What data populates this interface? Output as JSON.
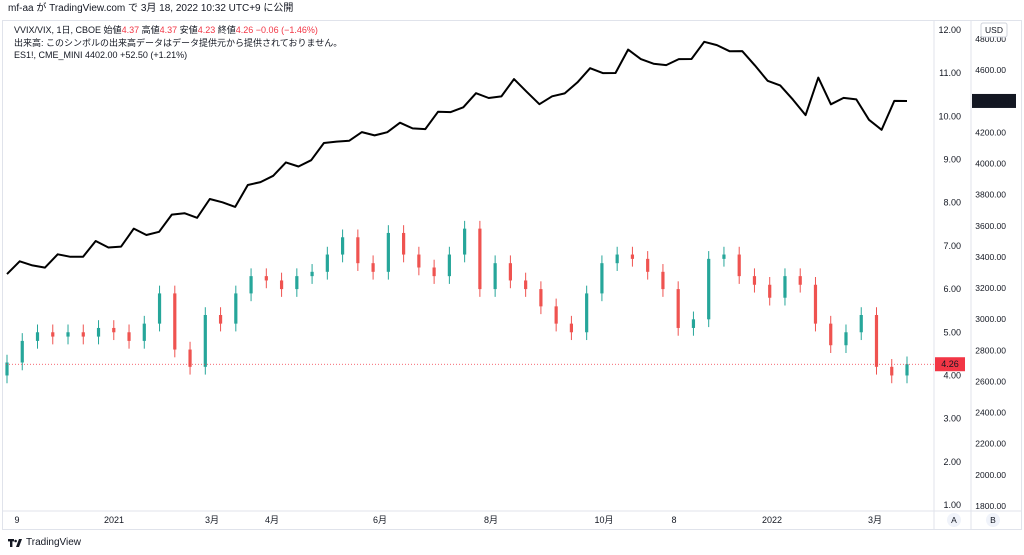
{
  "header": {
    "text": "mf-aa が TradingView.com で 3月 18, 2022 10:32 UTC+9 に公開"
  },
  "legend": {
    "vvix_symbol": "VVIX/VIX, 1日, CBOE",
    "open_label": "始値",
    "open": "4.37",
    "high_label": "高値",
    "high": "4.37",
    "low_label": "安値",
    "low": "4.23",
    "close_label": "終値",
    "close": "4.26",
    "change": "−0.06 (−1.46%)",
    "volume_note": "出来高: このシンボルの出来高データはデータ提供元から提供されておりません。",
    "es_symbol": "ES1!, CME_MINI",
    "es_value": "4402.00",
    "es_change": "+52.50 (+1.21%)"
  },
  "currency": "USD",
  "scale_buttons": {
    "a": "A",
    "b": "B"
  },
  "footer": {
    "brand": "TradingView"
  },
  "colors": {
    "up": "#26a69a",
    "down": "#ef5350",
    "line": "#000000",
    "last_price": "#f23645"
  },
  "chart_data": {
    "type": "candlestick+line",
    "x_labels": [
      "9",
      "2021",
      "3月",
      "4月",
      "6月",
      "8月",
      "10月",
      "8",
      "2022",
      "3月"
    ],
    "right_axis_ratio": {
      "ticks": [
        "12.00",
        "11.00",
        "10.00",
        "9.00",
        "8.00",
        "7.00",
        "6.00",
        "5.00",
        "4.00",
        "3.00",
        "2.00",
        "1.00"
      ],
      "range": [
        1,
        12
      ]
    },
    "right_axis_price": {
      "ticks": [
        "4800.00",
        "4600.00",
        "4400.00",
        "4200.00",
        "4000.00",
        "3800.00",
        "3600.00",
        "3400.00",
        "3200.00",
        "3000.00",
        "2800.00",
        "2600.00",
        "2400.00",
        "2200.00",
        "2000.00",
        "1800.00"
      ],
      "range": [
        1800,
        4800
      ]
    },
    "series": [
      {
        "name": "ES1!, CME_MINI",
        "axis": "price",
        "values": [
          3290,
          3340,
          3365,
          3370,
          3385,
          3420,
          3440,
          3470,
          3480,
          3505,
          3550,
          3560,
          3600,
          3640,
          3700,
          3690,
          3740,
          3770,
          3760,
          3830,
          3900,
          3960,
          3975,
          4000,
          4060,
          4100,
          4160,
          4185,
          4170,
          4200,
          4240,
          4230,
          4245,
          4260,
          4300,
          4350,
          4400,
          4420,
          4440,
          4470,
          4510,
          4480,
          4420,
          4400,
          4470,
          4560,
          4580,
          4600,
          4620,
          4700,
          4690,
          4680,
          4600,
          4690,
          4710,
          4750,
          4780,
          4760,
          4690,
          4650,
          4570,
          4470,
          4430,
          4350,
          4520,
          4400,
          4460,
          4380,
          4300,
          4255,
          4370,
          4402
        ]
      },
      {
        "name": "VVIX/VIX",
        "axis": "ratio",
        "type": "candlestick",
        "values": [
          4.3,
          4.8,
          5.0,
          4.9,
          5.0,
          4.9,
          5.1,
          5.0,
          4.8,
          5.2,
          5.9,
          4.6,
          4.2,
          5.4,
          5.2,
          5.9,
          6.3,
          6.2,
          6.0,
          6.3,
          6.4,
          6.8,
          7.2,
          6.6,
          6.4,
          7.3,
          6.8,
          6.5,
          6.3,
          6.8,
          7.4,
          6.0,
          6.6,
          6.2,
          6.0,
          5.6,
          5.2,
          5.0,
          5.9,
          6.6,
          6.8,
          6.7,
          6.4,
          6.0,
          5.1,
          5.3,
          6.7,
          6.8,
          6.3,
          6.1,
          5.8,
          6.3,
          6.1,
          5.2,
          4.7,
          5.0,
          5.4,
          4.2,
          4.0,
          4.26
        ]
      }
    ],
    "last_values": {
      "ratio": "4.26",
      "price": "4402.00"
    },
    "grid": false
  }
}
